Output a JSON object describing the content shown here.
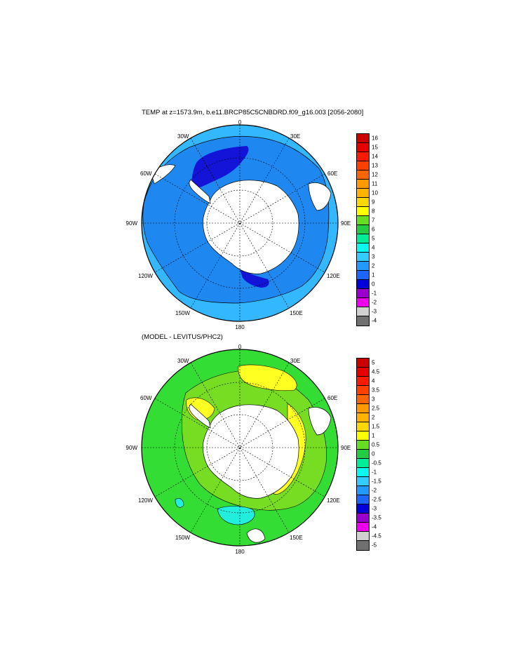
{
  "panels": [
    {
      "title": "TEMP at z=1573.9m, b.e11.BRCP85C5CNBDRD.f09_g16.003 [2056-2080]",
      "longitude_labels": {
        "top": "0",
        "bottom": "180",
        "left": "90W",
        "right": "90E",
        "upper_left_inner": "30W",
        "upper_left_outer": "60W",
        "upper_right_inner": "30E",
        "upper_right_outer": "60E",
        "lower_left_inner": "150W",
        "lower_left_outer": "120W",
        "lower_right_inner": "150E",
        "lower_right_outer": "120E"
      },
      "colorbar": {
        "labels": [
          "16",
          "15",
          "14",
          "13",
          "12",
          "11",
          "10",
          "9",
          "8",
          "7",
          "6",
          "5",
          "4",
          "3",
          "2",
          "1",
          "0",
          "-1",
          "-2",
          "-3",
          "-4"
        ],
        "colors": [
          "#cc0000",
          "#e60000",
          "#ff1a00",
          "#ff4000",
          "#ff6600",
          "#ff9900",
          "#ffb300",
          "#ffd700",
          "#ffff00",
          "#66dd22",
          "#22cc44",
          "#00ee99",
          "#00ffee",
          "#33ccff",
          "#2299ff",
          "#1a66ff",
          "#0000dd",
          "#9900cc",
          "#ee00ee",
          "#d0d0d0",
          "#707070"
        ]
      },
      "fill_colors": {
        "outer_ring": "#33b8ff",
        "main_water": "#1e88f0",
        "deep_cold": "#1414d8",
        "land": "#ffffff"
      }
    },
    {
      "title": "(MODEL - LEVITUS/PHC2)",
      "longitude_labels": {
        "top": "0",
        "bottom": "180",
        "left": "90W",
        "right": "90E",
        "upper_left_inner": "30W",
        "upper_left_outer": "60W",
        "upper_right_inner": "30E",
        "upper_right_outer": "60E",
        "lower_left_inner": "150W",
        "lower_left_outer": "120W",
        "lower_right_inner": "150E",
        "lower_right_outer": "120E"
      },
      "colorbar": {
        "labels": [
          "5",
          "4.5",
          "4",
          "3.5",
          "3",
          "2.5",
          "2",
          "1.5",
          "1",
          "0.5",
          "0",
          "-0.5",
          "-1",
          "-1.5",
          "-2",
          "-2.5",
          "-3",
          "-3.5",
          "-4",
          "-4.5",
          "-5"
        ],
        "colors": [
          "#cc0000",
          "#e60000",
          "#ff1a00",
          "#ff4000",
          "#ff6600",
          "#ff9900",
          "#ffb300",
          "#ffd700",
          "#ffff00",
          "#66dd22",
          "#22cc44",
          "#00ee99",
          "#00ffee",
          "#33ccff",
          "#2299ff",
          "#1a66ff",
          "#0000dd",
          "#9900cc",
          "#ee00ee",
          "#d0d0d0",
          "#707070"
        ]
      },
      "fill_colors": {
        "main_water": "#33dd33",
        "warm_anomaly": "#ffff22",
        "light_green": "#77dd22",
        "cyan_anomaly": "#22eedd",
        "land": "#ffffff"
      }
    }
  ]
}
